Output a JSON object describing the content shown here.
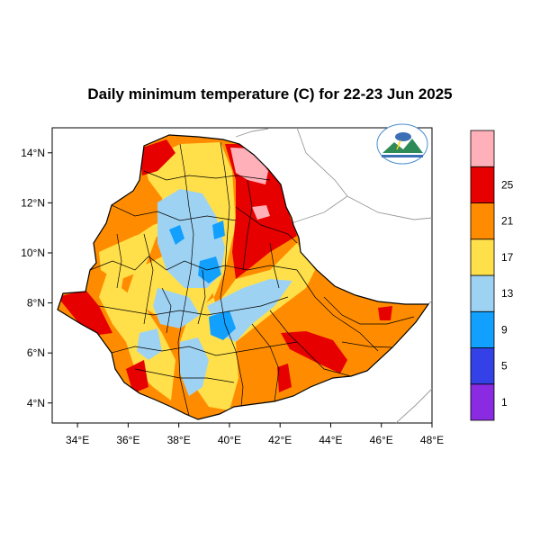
{
  "title": "Daily minimum temperature (C) for 22-23 Jun 2025",
  "map": {
    "lon_range": [
      33,
      48
    ],
    "lat_range": [
      3.2,
      15
    ],
    "lon_ticks": [
      {
        "value": 34,
        "label": "34°E"
      },
      {
        "value": 36,
        "label": "36°E"
      },
      {
        "value": 38,
        "label": "38°E"
      },
      {
        "value": 40,
        "label": "40°E"
      },
      {
        "value": 42,
        "label": "42°E"
      },
      {
        "value": 44,
        "label": "44°E"
      },
      {
        "value": 46,
        "label": "46°E"
      },
      {
        "value": 48,
        "label": "48°E"
      }
    ],
    "lat_ticks": [
      {
        "value": 4,
        "label": "4°N"
      },
      {
        "value": 6,
        "label": "6°N"
      },
      {
        "value": 8,
        "label": "8°N"
      },
      {
        "value": 10,
        "label": "10°N"
      },
      {
        "value": 12,
        "label": "12°N"
      },
      {
        "value": 14,
        "label": "14°N"
      }
    ]
  },
  "legend": {
    "bins": [
      {
        "color": "#8a2be2",
        "label": "1"
      },
      {
        "color": "#3341e6",
        "label": "5"
      },
      {
        "color": "#12a0ff",
        "label": "9"
      },
      {
        "color": "#9ed2f2",
        "label": "13"
      },
      {
        "color": "#ffe04a",
        "label": "17"
      },
      {
        "color": "#ff8c00",
        "label": "21"
      },
      {
        "color": "#e60000",
        "label": "25"
      },
      {
        "color": "#ffb0b8",
        "label": ""
      }
    ]
  },
  "colors": {
    "frame": "#000000",
    "neighbor_border": "#999999"
  },
  "logo_icon": "ethiopian-meteorology-logo-icon"
}
